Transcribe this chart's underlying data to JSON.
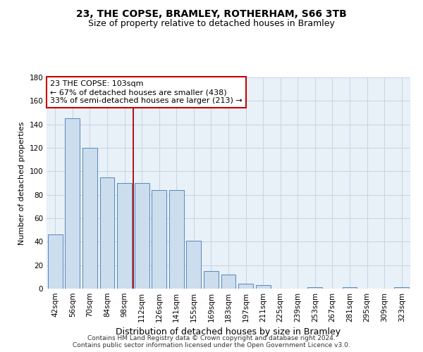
{
  "title1": "23, THE COPSE, BRAMLEY, ROTHERHAM, S66 3TB",
  "title2": "Size of property relative to detached houses in Bramley",
  "xlabel": "Distribution of detached houses by size in Bramley",
  "ylabel": "Number of detached properties",
  "categories": [
    "42sqm",
    "56sqm",
    "70sqm",
    "84sqm",
    "98sqm",
    "112sqm",
    "126sqm",
    "141sqm",
    "155sqm",
    "169sqm",
    "183sqm",
    "197sqm",
    "211sqm",
    "225sqm",
    "239sqm",
    "253sqm",
    "267sqm",
    "281sqm",
    "295sqm",
    "309sqm",
    "323sqm"
  ],
  "values": [
    46,
    145,
    120,
    95,
    90,
    90,
    84,
    84,
    41,
    15,
    12,
    4,
    3,
    0,
    0,
    1,
    0,
    1,
    0,
    0,
    1
  ],
  "bar_color": "#ccdded",
  "bar_edge_color": "#5588bb",
  "vline_x_idx": 4.5,
  "vline_color": "#aa0000",
  "annotation_text": "23 THE COPSE: 103sqm\n← 67% of detached houses are smaller (438)\n33% of semi-detached houses are larger (213) →",
  "annotation_box_facecolor": "#ffffff",
  "annotation_box_edgecolor": "#cc0000",
  "ylim": [
    0,
    180
  ],
  "yticks": [
    0,
    20,
    40,
    60,
    80,
    100,
    120,
    140,
    160,
    180
  ],
  "grid_color": "#c5d5e5",
  "bg_color": "#e8f0f8",
  "footer": "Contains HM Land Registry data © Crown copyright and database right 2024.\nContains public sector information licensed under the Open Government Licence v3.0.",
  "title1_fontsize": 10,
  "title2_fontsize": 9,
  "xlabel_fontsize": 9,
  "ylabel_fontsize": 8,
  "tick_fontsize": 7.5,
  "annotation_fontsize": 8,
  "footer_fontsize": 6.5
}
